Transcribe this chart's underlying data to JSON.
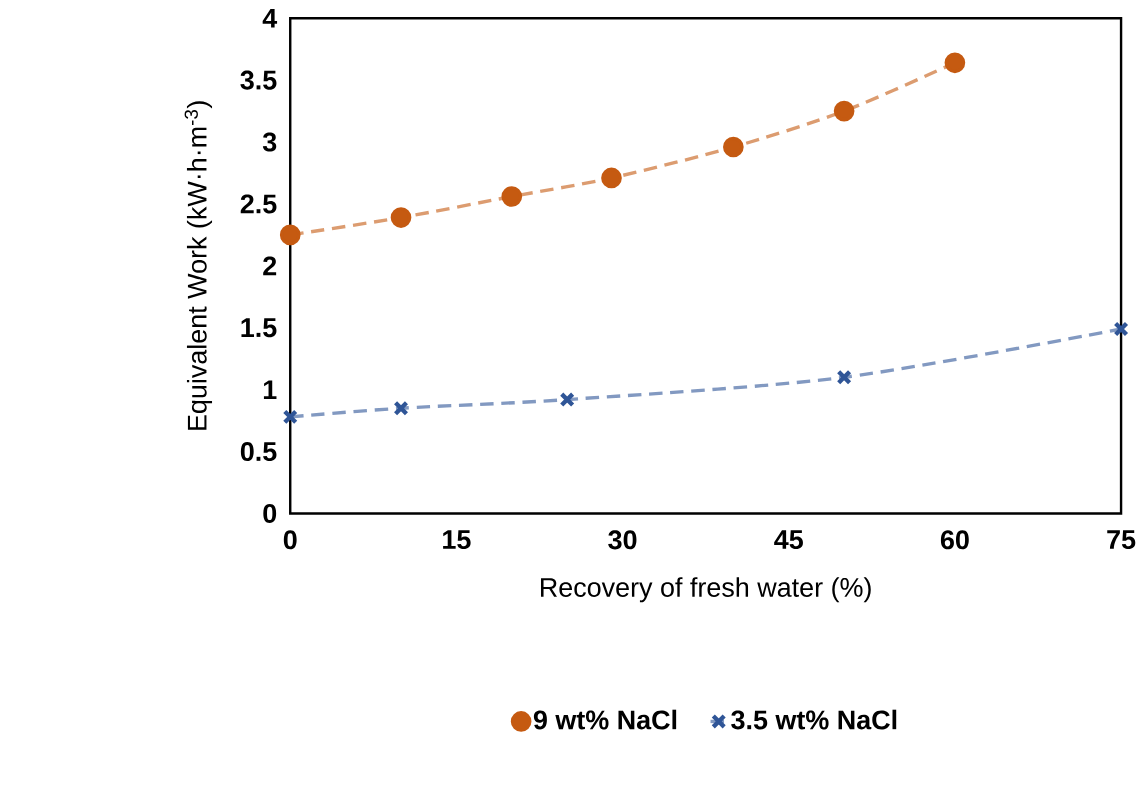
{
  "chart_data": {
    "type": "line",
    "xlabel": "Recovery of fresh water (%)",
    "ylabel": "Equivalent Work (kW·h·m$^{-3}$)",
    "xlim": [
      0,
      75
    ],
    "ylim": [
      0,
      4
    ],
    "xticks": [
      0,
      15,
      30,
      45,
      60,
      75
    ],
    "yticks": [
      0,
      0.5,
      1,
      1.5,
      2,
      2.5,
      3,
      3.5,
      4
    ],
    "line_style": "dashed",
    "legend": "bottom",
    "series": [
      {
        "name": "9 wt% NaCl",
        "color": "#c55a11",
        "marker": "circle",
        "x": [
          0,
          10,
          20,
          29,
          40,
          50,
          60
        ],
        "values": [
          2.25,
          2.39,
          2.56,
          2.71,
          2.96,
          3.25,
          3.64
        ]
      },
      {
        "name": "3.5 wt% NaCl",
        "color": "#2f5597",
        "marker": "cross",
        "x": [
          0,
          10,
          25,
          50,
          75
        ],
        "values": [
          0.78,
          0.85,
          0.92,
          1.1,
          1.49
        ]
      }
    ]
  }
}
